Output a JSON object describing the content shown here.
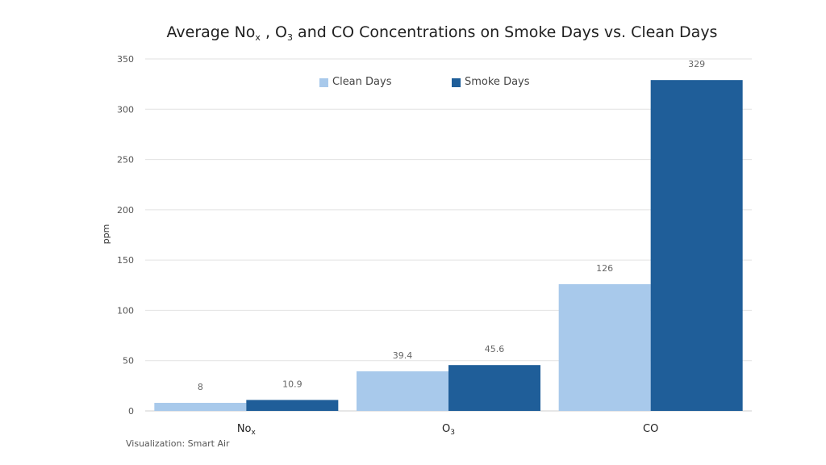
{
  "chart_data": {
    "type": "bar",
    "title": {
      "prefix": "Average No",
      "sub1": "x",
      "mid": " , O",
      "sub2": "3",
      "suffix": " and CO Concentrations on Smoke Days vs. Clean Days"
    },
    "xlabel": "",
    "ylabel": "ppm",
    "ylim": [
      0,
      350
    ],
    "yticks": [
      0,
      50,
      100,
      150,
      200,
      250,
      300,
      350
    ],
    "grid": true,
    "legend_position": "top",
    "categories": [
      {
        "base": "No",
        "sub": "x"
      },
      {
        "base": "O",
        "sub": "3"
      },
      {
        "base": "CO",
        "sub": ""
      }
    ],
    "series": [
      {
        "name": "Clean Days",
        "color": "#a8c9eb",
        "values": [
          8,
          39.4,
          126
        ],
        "labels": [
          "8",
          "39.4",
          "126"
        ]
      },
      {
        "name": "Smoke Days",
        "color": "#1f5e99",
        "values": [
          10.9,
          45.6,
          329
        ],
        "labels": [
          "10.9",
          "45.6",
          "329"
        ]
      }
    ],
    "source": "Visualization: Smart Air"
  }
}
